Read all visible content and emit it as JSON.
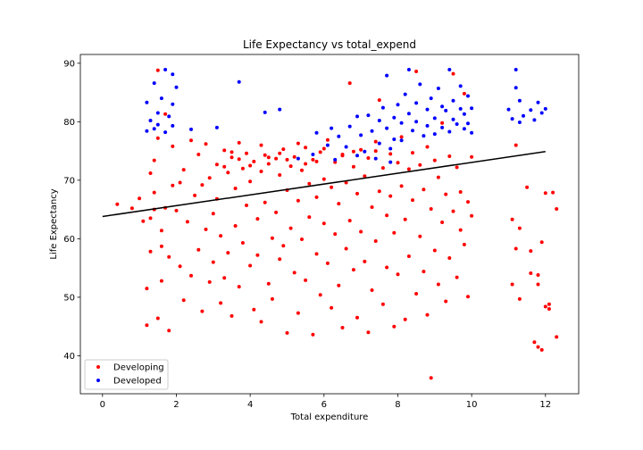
{
  "chart_data": {
    "type": "scatter",
    "title": "Life Expectancy vs total_expend",
    "xlabel": "Total expenditure",
    "ylabel": "Life Expectancy",
    "xlim": [
      -0.6,
      12.9
    ],
    "ylim": [
      33.5,
      91.5
    ],
    "xticks": [
      "0",
      "2",
      "4",
      "6",
      "8",
      "10",
      "12"
    ],
    "xtick_values": [
      0,
      2,
      4,
      6,
      8,
      10,
      12
    ],
    "yticks": [
      "40",
      "50",
      "60",
      "70",
      "80",
      "90"
    ],
    "ytick_values": [
      40,
      50,
      60,
      70,
      80,
      90
    ],
    "grid": false,
    "legend_position": "bottom-left",
    "series": [
      {
        "name": "Developing",
        "color": "#ff0000",
        "points": [
          [
            1.2,
            45.2
          ],
          [
            1.3,
            57.8
          ],
          [
            1.3,
            63.5
          ],
          [
            1.4,
            67.9
          ],
          [
            1.4,
            73.4
          ],
          [
            1.5,
            77.2
          ],
          [
            1.5,
            88.8
          ],
          [
            1.6,
            52.8
          ],
          [
            1.6,
            61.4
          ],
          [
            1.7,
            65.3
          ],
          [
            1.7,
            81.3
          ],
          [
            1.8,
            44.3
          ],
          [
            1.8,
            56.9
          ],
          [
            1.9,
            69.1
          ],
          [
            1.9,
            75.8
          ],
          [
            1.2,
            51.5
          ],
          [
            1.3,
            71.2
          ],
          [
            1.4,
            65.0
          ],
          [
            1.5,
            46.4
          ],
          [
            1.6,
            58.7
          ],
          [
            0.4,
            65.9
          ],
          [
            0.8,
            65.2
          ],
          [
            1.0,
            66.9
          ],
          [
            1.1,
            63.0
          ],
          [
            2.0,
            64.8
          ],
          [
            2.1,
            55.3
          ],
          [
            2.1,
            69.6
          ],
          [
            2.2,
            49.5
          ],
          [
            2.2,
            71.8
          ],
          [
            2.3,
            62.9
          ],
          [
            2.4,
            76.8
          ],
          [
            2.4,
            53.7
          ],
          [
            2.5,
            67.4
          ],
          [
            2.6,
            74.4
          ],
          [
            2.6,
            58.1
          ],
          [
            2.7,
            47.6
          ],
          [
            2.7,
            69.2
          ],
          [
            2.8,
            76.2
          ],
          [
            2.8,
            61.6
          ],
          [
            2.9,
            52.6
          ],
          [
            2.9,
            70.4
          ],
          [
            3.0,
            64.3
          ],
          [
            3.0,
            56.0
          ],
          [
            3.1,
            72.7
          ],
          [
            3.1,
            66.8
          ],
          [
            3.2,
            49.0
          ],
          [
            3.2,
            60.5
          ],
          [
            3.3,
            75.1
          ],
          [
            3.3,
            53.3
          ],
          [
            3.4,
            71.3
          ],
          [
            3.4,
            57.6
          ],
          [
            3.5,
            73.9
          ],
          [
            3.5,
            46.8
          ],
          [
            3.6,
            68.6
          ],
          [
            3.6,
            62.2
          ],
          [
            3.7,
            76.4
          ],
          [
            3.7,
            51.8
          ],
          [
            3.8,
            72.0
          ],
          [
            3.8,
            59.3
          ],
          [
            3.9,
            65.7
          ],
          [
            3.9,
            74.6
          ],
          [
            4.0,
            55.4
          ],
          [
            4.0,
            69.8
          ],
          [
            4.1,
            47.9
          ],
          [
            4.1,
            73.2
          ],
          [
            4.2,
            63.4
          ],
          [
            4.2,
            57.2
          ],
          [
            4.3,
            71.5
          ],
          [
            4.3,
            45.8
          ],
          [
            4.4,
            74.3
          ],
          [
            4.4,
            66.2
          ],
          [
            4.5,
            52.3
          ],
          [
            4.5,
            72.8
          ],
          [
            4.6,
            60.1
          ],
          [
            4.6,
            49.7
          ],
          [
            4.7,
            73.7
          ],
          [
            4.7,
            64.5
          ],
          [
            4.8,
            56.5
          ],
          [
            4.8,
            70.9
          ],
          [
            4.9,
            75.3
          ],
          [
            4.9,
            58.8
          ],
          [
            5.0,
            43.9
          ],
          [
            5.0,
            68.3
          ],
          [
            5.1,
            72.4
          ],
          [
            5.1,
            61.8
          ],
          [
            5.2,
            54.2
          ],
          [
            5.2,
            74.0
          ],
          [
            5.3,
            66.5
          ],
          [
            5.3,
            47.3
          ],
          [
            5.4,
            71.7
          ],
          [
            5.4,
            59.9
          ],
          [
            5.5,
            75.6
          ],
          [
            5.5,
            52.9
          ],
          [
            5.6,
            69.4
          ],
          [
            5.6,
            63.7
          ],
          [
            5.7,
            43.6
          ],
          [
            5.7,
            73.5
          ],
          [
            5.8,
            57.4
          ],
          [
            5.8,
            67.1
          ],
          [
            5.9,
            74.8
          ],
          [
            5.9,
            50.4
          ],
          [
            6.0,
            70.2
          ],
          [
            6.0,
            62.6
          ],
          [
            6.1,
            76.9
          ],
          [
            6.1,
            55.8
          ],
          [
            6.2,
            68.8
          ],
          [
            6.2,
            48.2
          ],
          [
            6.3,
            73.1
          ],
          [
            6.3,
            60.8
          ],
          [
            6.4,
            66.0
          ],
          [
            6.4,
            52.0
          ],
          [
            6.5,
            74.2
          ],
          [
            6.5,
            44.8
          ],
          [
            6.6,
            69.6
          ],
          [
            6.6,
            58.3
          ],
          [
            6.7,
            63.1
          ],
          [
            6.7,
            86.6
          ],
          [
            6.8,
            72.3
          ],
          [
            6.8,
            54.7
          ],
          [
            6.9,
            67.7
          ],
          [
            6.9,
            46.5
          ],
          [
            7.0,
            75.2
          ],
          [
            7.0,
            61.2
          ],
          [
            7.1,
            70.7
          ],
          [
            7.1,
            56.1
          ],
          [
            7.2,
            44.0
          ],
          [
            7.2,
            73.8
          ],
          [
            7.3,
            65.4
          ],
          [
            7.3,
            51.2
          ],
          [
            7.4,
            76.6
          ],
          [
            7.4,
            59.6
          ],
          [
            7.5,
            68.1
          ],
          [
            7.5,
            83.7
          ],
          [
            7.6,
            72.1
          ],
          [
            7.6,
            48.8
          ],
          [
            7.7,
            64.0
          ],
          [
            7.7,
            55.1
          ],
          [
            7.8,
            74.5
          ],
          [
            7.8,
            67.3
          ],
          [
            7.9,
            45.0
          ],
          [
            7.9,
            61.0
          ],
          [
            8.0,
            73.0
          ],
          [
            8.0,
            53.9
          ],
          [
            8.1,
            69.0
          ],
          [
            8.1,
            77.4
          ],
          [
            8.2,
            46.2
          ],
          [
            8.2,
            63.3
          ],
          [
            8.3,
            71.9
          ],
          [
            8.3,
            57.0
          ],
          [
            8.4,
            74.7
          ],
          [
            8.4,
            66.6
          ],
          [
            8.5,
            50.6
          ],
          [
            8.5,
            88.6
          ],
          [
            8.6,
            72.6
          ],
          [
            8.6,
            60.4
          ],
          [
            8.7,
            68.4
          ],
          [
            8.7,
            54.4
          ],
          [
            8.8,
            75.7
          ],
          [
            8.8,
            47.0
          ],
          [
            8.9,
            36.2
          ],
          [
            8.9,
            65.1
          ],
          [
            9.0,
            73.4
          ],
          [
            9.0,
            58.0
          ],
          [
            9.1,
            70.5
          ],
          [
            9.1,
            52.2
          ],
          [
            9.2,
            62.8
          ],
          [
            9.2,
            79.8
          ],
          [
            9.3,
            67.6
          ],
          [
            9.3,
            49.3
          ],
          [
            9.4,
            74.1
          ],
          [
            9.4,
            56.7
          ],
          [
            9.5,
            64.7
          ],
          [
            9.5,
            88.2
          ],
          [
            9.6,
            72.2
          ],
          [
            9.6,
            53.4
          ],
          [
            9.7,
            68.0
          ],
          [
            9.7,
            61.5
          ],
          [
            9.8,
            84.8
          ],
          [
            9.8,
            59.0
          ],
          [
            9.9,
            66.3
          ],
          [
            9.9,
            50.1
          ],
          [
            10.0,
            63.9
          ],
          [
            10.0,
            74.0
          ],
          [
            11.1,
            63.3
          ],
          [
            11.1,
            52.2
          ],
          [
            11.2,
            76.0
          ],
          [
            11.2,
            58.3
          ],
          [
            11.3,
            49.7
          ],
          [
            11.3,
            61.8
          ],
          [
            11.5,
            68.8
          ],
          [
            11.6,
            57.9
          ],
          [
            11.6,
            54.1
          ],
          [
            11.7,
            42.3
          ],
          [
            11.8,
            41.5
          ],
          [
            11.8,
            53.8
          ],
          [
            11.9,
            59.4
          ],
          [
            11.9,
            41.0
          ],
          [
            12.0,
            48.4
          ],
          [
            12.0,
            67.8
          ],
          [
            12.1,
            48.8
          ],
          [
            12.2,
            67.9
          ],
          [
            12.3,
            65.1
          ],
          [
            12.3,
            43.2
          ],
          [
            12.1,
            48.0
          ],
          [
            11.8,
            52.2
          ],
          [
            3.5,
            74.8
          ],
          [
            4.5,
            73.9
          ],
          [
            5.5,
            72.8
          ],
          [
            6.5,
            74.4
          ],
          [
            5.0,
            73.5
          ],
          [
            6.0,
            75.4
          ],
          [
            4.0,
            72.5
          ],
          [
            3.7,
            73.6
          ],
          [
            4.8,
            74.6
          ],
          [
            5.8,
            73.2
          ],
          [
            6.8,
            74.9
          ],
          [
            7.4,
            75.0
          ],
          [
            5.3,
            76.3
          ],
          [
            4.3,
            76.0
          ],
          [
            3.3,
            72.3
          ]
        ]
      },
      {
        "name": "Developed",
        "color": "#0000ff",
        "points": [
          [
            1.2,
            78.4
          ],
          [
            1.2,
            83.3
          ],
          [
            1.3,
            80.2
          ],
          [
            1.4,
            86.6
          ],
          [
            1.4,
            78.8
          ],
          [
            1.5,
            81.5
          ],
          [
            1.5,
            79.5
          ],
          [
            1.6,
            84.0
          ],
          [
            1.7,
            88.9
          ],
          [
            1.7,
            78.2
          ],
          [
            1.8,
            80.9
          ],
          [
            1.9,
            83.0
          ],
          [
            1.9,
            79.3
          ],
          [
            1.9,
            88.1
          ],
          [
            2.0,
            85.9
          ],
          [
            2.4,
            78.7
          ],
          [
            3.1,
            79.0
          ],
          [
            3.7,
            86.8
          ],
          [
            4.4,
            81.6
          ],
          [
            4.8,
            82.1
          ],
          [
            5.3,
            73.7
          ],
          [
            5.7,
            74.4
          ],
          [
            5.8,
            78.1
          ],
          [
            6.1,
            76.0
          ],
          [
            6.2,
            78.9
          ],
          [
            6.4,
            77.5
          ],
          [
            6.6,
            75.7
          ],
          [
            6.7,
            79.2
          ],
          [
            6.9,
            80.9
          ],
          [
            7.0,
            77.7
          ],
          [
            7.1,
            74.9
          ],
          [
            7.2,
            81.1
          ],
          [
            7.3,
            78.4
          ],
          [
            7.4,
            73.7
          ],
          [
            7.5,
            80.2
          ],
          [
            7.5,
            76.3
          ],
          [
            7.6,
            82.4
          ],
          [
            7.7,
            78.9
          ],
          [
            7.7,
            87.9
          ],
          [
            7.8,
            75.4
          ],
          [
            7.9,
            80.7
          ],
          [
            7.9,
            77.0
          ],
          [
            8.0,
            82.9
          ],
          [
            8.1,
            79.8
          ],
          [
            8.1,
            76.8
          ],
          [
            8.2,
            84.7
          ],
          [
            8.3,
            81.4
          ],
          [
            8.3,
            88.9
          ],
          [
            8.4,
            78.5
          ],
          [
            8.5,
            83.2
          ],
          [
            8.5,
            80.0
          ],
          [
            8.6,
            86.4
          ],
          [
            8.7,
            77.6
          ],
          [
            8.8,
            82.1
          ],
          [
            8.8,
            79.3
          ],
          [
            8.9,
            84.0
          ],
          [
            9.0,
            80.6
          ],
          [
            9.0,
            77.9
          ],
          [
            9.1,
            85.7
          ],
          [
            9.2,
            82.6
          ],
          [
            9.2,
            79.0
          ],
          [
            9.3,
            81.9
          ],
          [
            9.4,
            78.3
          ],
          [
            9.4,
            88.9
          ],
          [
            9.5,
            80.4
          ],
          [
            9.5,
            83.6
          ],
          [
            9.6,
            79.6
          ],
          [
            9.7,
            82.2
          ],
          [
            9.7,
            86.1
          ],
          [
            9.8,
            78.8
          ],
          [
            9.8,
            81.3
          ],
          [
            9.9,
            84.4
          ],
          [
            9.9,
            79.7
          ],
          [
            10.0,
            82.3
          ],
          [
            10.0,
            78.1
          ],
          [
            11.0,
            82.1
          ],
          [
            11.1,
            80.5
          ],
          [
            11.2,
            88.9
          ],
          [
            11.2,
            85.8
          ],
          [
            11.3,
            83.6
          ],
          [
            11.3,
            79.9
          ],
          [
            11.6,
            82.0
          ],
          [
            11.7,
            80.3
          ],
          [
            11.8,
            83.3
          ],
          [
            11.9,
            81.5
          ],
          [
            12.0,
            82.2
          ],
          [
            11.4,
            81.0
          ],
          [
            6.3,
            73.5
          ],
          [
            6.9,
            74.2
          ],
          [
            7.8,
            73.1
          ]
        ]
      }
    ],
    "trend_line": {
      "color": "#000000",
      "x": [
        0,
        12
      ],
      "y": [
        63.8,
        74.9
      ]
    }
  }
}
